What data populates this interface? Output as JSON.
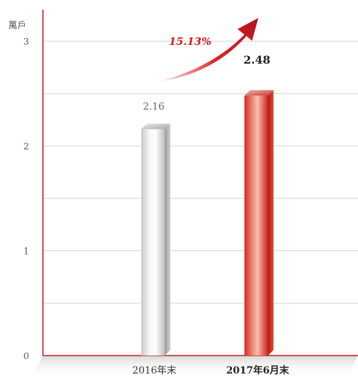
{
  "chart_data": {
    "type": "bar",
    "unit": "萬戶",
    "categories": [
      "2016年末",
      "2017年6月末"
    ],
    "values": [
      2.16,
      2.48
    ],
    "value_labels": [
      "2.16",
      "2.48"
    ],
    "ylim": [
      0,
      3.3
    ],
    "yticks": [
      0,
      1,
      2,
      3
    ],
    "y_tick_labels": [
      "0",
      "1",
      "2",
      "3"
    ],
    "grid": true,
    "growth": "15.13%",
    "colors": {
      "axis": "#c8161d",
      "grid": "#d4d4d4",
      "bar_2016": "#b8b8b8",
      "bar_2017": "#e2342a",
      "arrow": "#d71920"
    }
  }
}
